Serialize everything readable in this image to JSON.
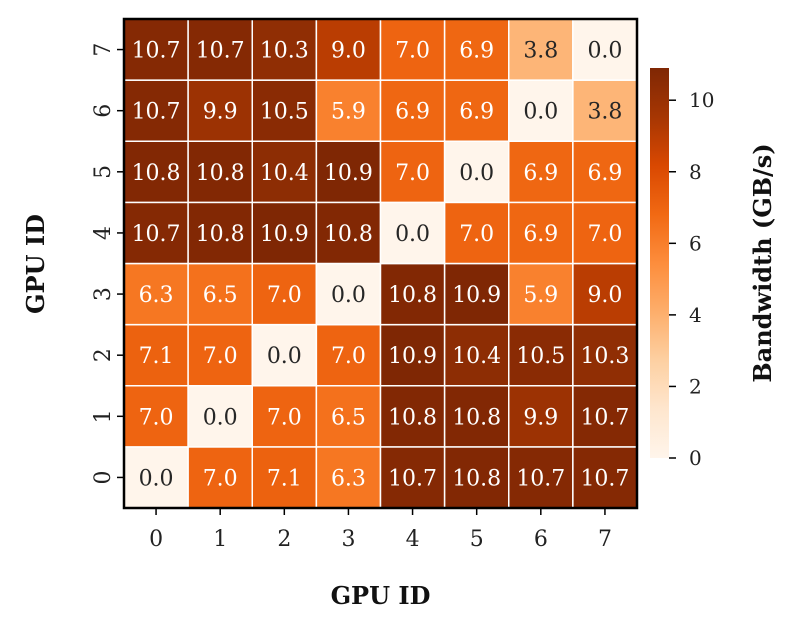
{
  "chart_data": {
    "type": "heatmap",
    "title": "",
    "xlabel": "GPU ID",
    "ylabel": "GPU ID",
    "x_categories": [
      "0",
      "1",
      "2",
      "3",
      "4",
      "5",
      "6",
      "7"
    ],
    "y_categories": [
      "0",
      "1",
      "2",
      "3",
      "4",
      "5",
      "6",
      "7"
    ],
    "y_order": "bottom-to-top",
    "values": [
      [
        0.0,
        7.0,
        7.1,
        6.3,
        10.7,
        10.8,
        10.7,
        10.7
      ],
      [
        7.0,
        0.0,
        7.0,
        6.5,
        10.8,
        10.8,
        9.9,
        10.7
      ],
      [
        7.1,
        7.0,
        0.0,
        7.0,
        10.9,
        10.4,
        10.5,
        10.3
      ],
      [
        6.3,
        6.5,
        7.0,
        0.0,
        10.8,
        10.9,
        5.9,
        9.0
      ],
      [
        10.7,
        10.8,
        10.9,
        10.8,
        0.0,
        7.0,
        6.9,
        7.0
      ],
      [
        10.8,
        10.8,
        10.4,
        10.9,
        7.0,
        0.0,
        6.9,
        6.9
      ],
      [
        10.7,
        9.9,
        10.5,
        5.9,
        6.9,
        6.9,
        0.0,
        3.8
      ],
      [
        10.7,
        10.7,
        10.3,
        9.0,
        7.0,
        6.9,
        3.8,
        0.0
      ]
    ],
    "value_format": "0.0",
    "colorbar": {
      "label": "Bandwidth (GB/s)",
      "range": [
        0,
        10.9
      ],
      "ticks": [
        0,
        2,
        4,
        6,
        8,
        10
      ],
      "colormap": "Oranges"
    },
    "grid_lines": true,
    "grid_color": "#ffffff"
  }
}
